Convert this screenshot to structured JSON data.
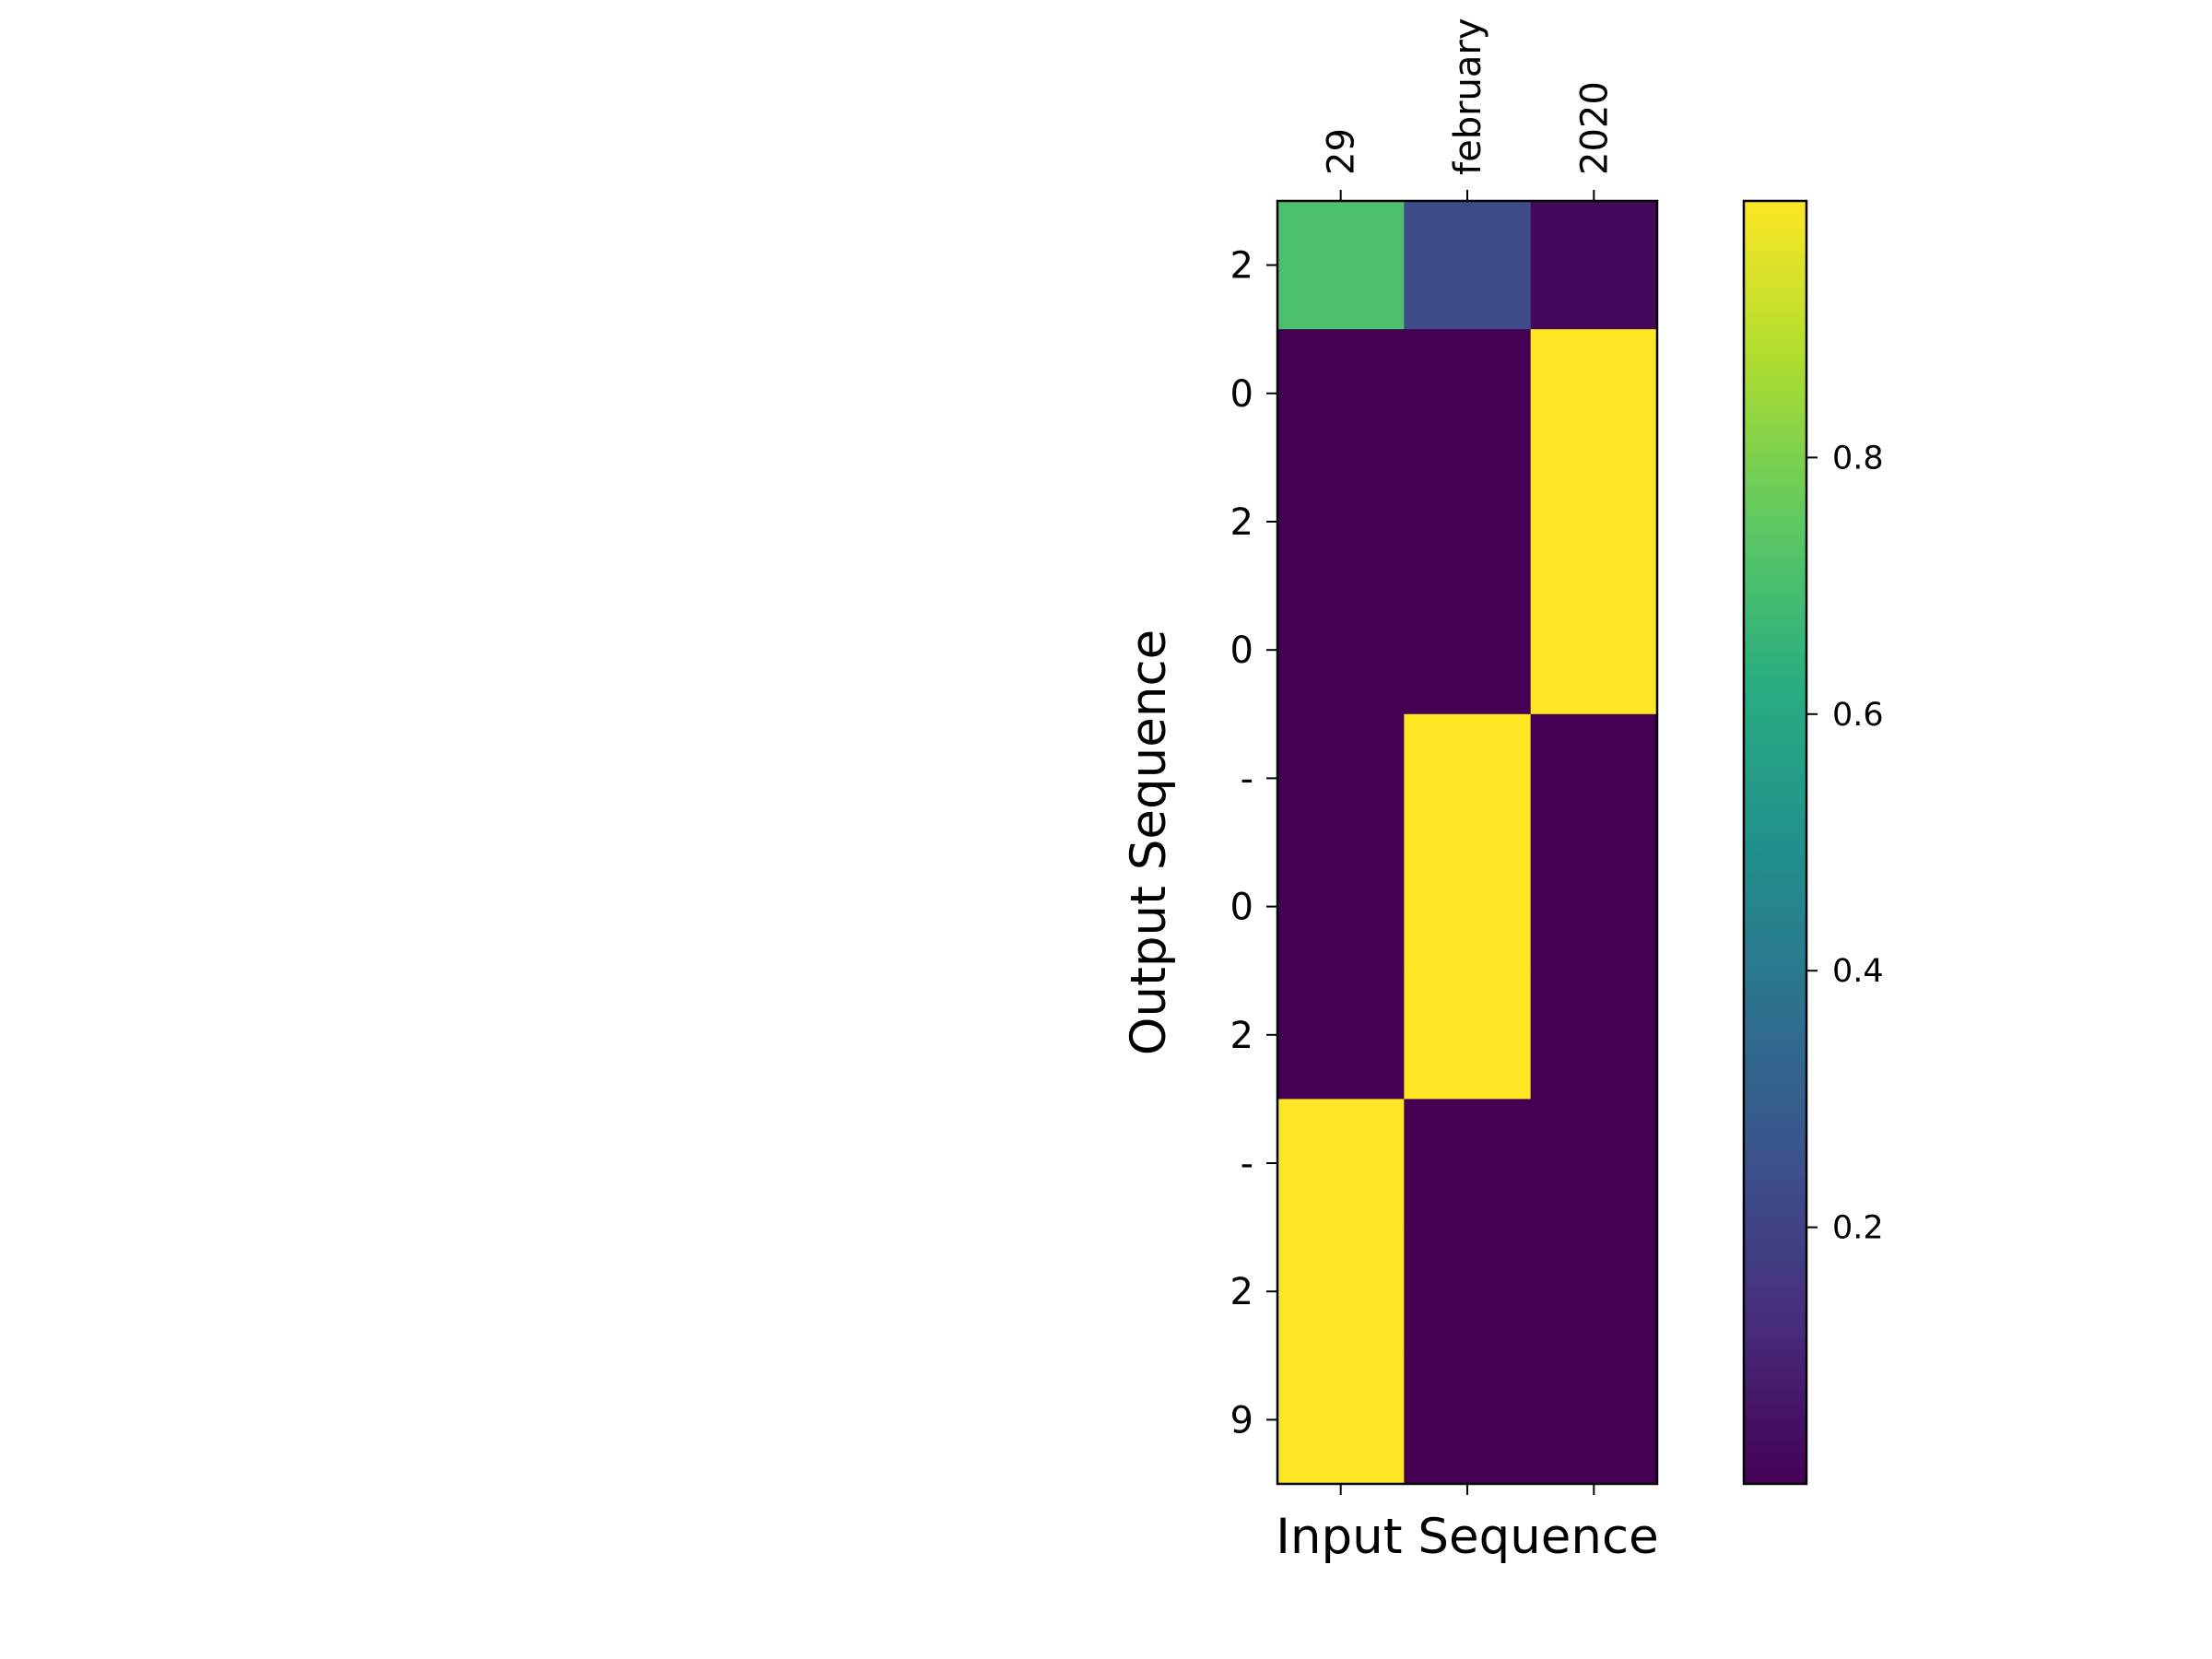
{
  "chart_data": {
    "type": "heatmap",
    "x": [
      "29",
      "february",
      "2020"
    ],
    "y": [
      "2",
      "0",
      "2",
      "0",
      "-",
      "0",
      "2",
      "-",
      "2",
      "9"
    ],
    "values": [
      [
        0.71,
        0.23,
        0.02
      ],
      [
        0.0,
        0.0,
        1.0
      ],
      [
        0.0,
        0.0,
        1.0
      ],
      [
        0.0,
        0.0,
        1.0
      ],
      [
        0.0,
        1.0,
        0.0
      ],
      [
        0.0,
        1.0,
        0.0
      ],
      [
        0.0,
        1.0,
        0.0
      ],
      [
        1.0,
        0.0,
        0.0
      ],
      [
        1.0,
        0.0,
        0.0
      ],
      [
        1.0,
        0.0,
        0.0
      ]
    ],
    "xlabel": "Input Sequence",
    "ylabel": "Output Sequence",
    "x_tick_position": "top",
    "colormap": "viridis",
    "colorbar": {
      "ticks": [
        0.2,
        0.4,
        0.6,
        0.8
      ],
      "tick_labels": [
        "0.2",
        "0.4",
        "0.6",
        "0.8"
      ],
      "range": [
        0.0,
        1.0
      ]
    },
    "grid": false
  }
}
